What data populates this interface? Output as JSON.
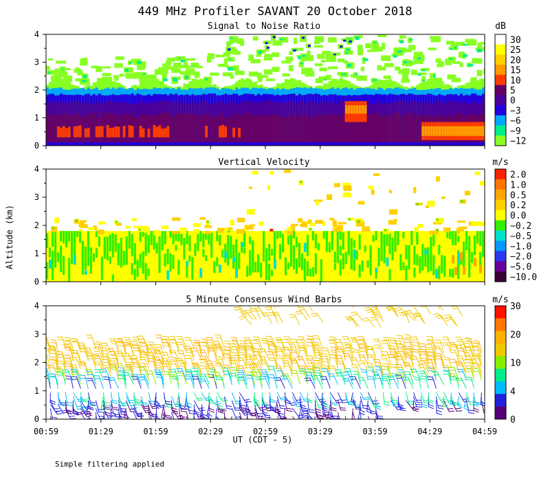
{
  "figure": {
    "title": "449 MHz Profiler SAVANT 20 October 2018",
    "ylabel": "Altitude (km)",
    "xlabel": "UT  (CDT - 5)",
    "footnote": "Simple filtering applied",
    "x_ticks": [
      "00:59",
      "01:29",
      "01:59",
      "02:29",
      "02:59",
      "03:29",
      "03:59",
      "04:29",
      "04:59"
    ]
  },
  "chart_data": [
    {
      "type": "heatmap",
      "title": "Signal to Noise Ratio",
      "xlabel": "UT  (CDT - 5)",
      "ylabel": "Altitude (km)",
      "x_range": [
        "00:59",
        "04:59"
      ],
      "ylim": [
        0,
        4
      ],
      "y_ticks": [
        "0",
        "1",
        "2",
        "3",
        "4"
      ],
      "colorbar": {
        "unit": "dB",
        "labels": [
          "30",
          "25",
          "20",
          "15",
          "10",
          "5",
          "0",
          "−3",
          "−6",
          "−9",
          "−12"
        ],
        "colors": [
          "#ffffff",
          "#ffff00",
          "#ffd000",
          "#ff9a00",
          "#ff3c00",
          "#660066",
          "#4a0099",
          "#2200dd",
          "#00a6ff",
          "#00ee88",
          "#88ff22"
        ]
      },
      "layers": [
        {
          "z_db": -12,
          "top_km": 2.3,
          "note": "green band, patchy echoes 3-4 km"
        },
        {
          "z_db": -6,
          "top_km": 2.05
        },
        {
          "z_db": 0,
          "top_km": 1.85
        },
        {
          "z_db": 5,
          "top_km": 1.45
        },
        {
          "z_db": 10,
          "top_km": 0.5,
          "note": "red patches near 0.5 km and 1.3 km after 03:45"
        }
      ]
    },
    {
      "type": "heatmap",
      "title": "Vertical Velocity",
      "xlabel": "UT  (CDT - 5)",
      "ylabel": "Altitude (km)",
      "x_range": [
        "00:59",
        "04:59"
      ],
      "ylim": [
        0,
        4
      ],
      "y_ticks": [
        "0",
        "1",
        "2",
        "3",
        "4"
      ],
      "colorbar": {
        "unit": "m/s",
        "labels": [
          "2.0",
          "1.0",
          "0.5",
          "0.2",
          "0.0",
          "−0.2",
          "−0.5",
          "−1.0",
          "−2.0",
          "−5.0",
          "−10.0"
        ],
        "colors": [
          "#ff2200",
          "#ff7700",
          "#ffa500",
          "#ffd000",
          "#ffff00",
          "#33ee00",
          "#00e0cc",
          "#0099ff",
          "#2a36ee",
          "#6a0099",
          "#3a0033"
        ]
      },
      "layers": [
        {
          "w_ms": 0.0,
          "top_km": 1.8,
          "note": "mostly yellow with green streaks"
        },
        {
          "w_ms": 0.2,
          "top_km": 2.3,
          "note": "scattered orange/yellow patches 2-4 km"
        }
      ]
    },
    {
      "type": "scatter",
      "title": "5 Minute Consensus Wind Barbs",
      "xlabel": "UT  (CDT - 5)",
      "ylabel": "Altitude (km)",
      "x_range": [
        "00:59",
        "04:59"
      ],
      "ylim": [
        0,
        4
      ],
      "y_ticks": [
        "0",
        "1",
        "2",
        "3",
        "4"
      ],
      "colorbar": {
        "unit": "m/s",
        "labels": [
          "30",
          "20",
          "10",
          "4",
          "0"
        ],
        "colors": [
          "#ff1100",
          "#ff7700",
          "#ffb000",
          "#f0c800",
          "#88ee00",
          "#00ee88",
          "#00bbff",
          "#2222dd",
          "#550077"
        ]
      },
      "layers": [
        {
          "speed_ms": 2,
          "alt_km": [
            0.1,
            0.8
          ],
          "note": "light winds, purple/blue barbs"
        },
        {
          "speed_ms": 8,
          "alt_km": [
            0.8,
            1.5
          ],
          "note": "green/cyan barbs"
        },
        {
          "speed_ms": 18,
          "alt_km": [
            1.5,
            2.8
          ],
          "note": "orange barbs from southwest"
        },
        {
          "speed_ms": 20,
          "alt_km": [
            3.2,
            4.0
          ],
          "note": "orange barbs after 02:59"
        }
      ]
    }
  ]
}
